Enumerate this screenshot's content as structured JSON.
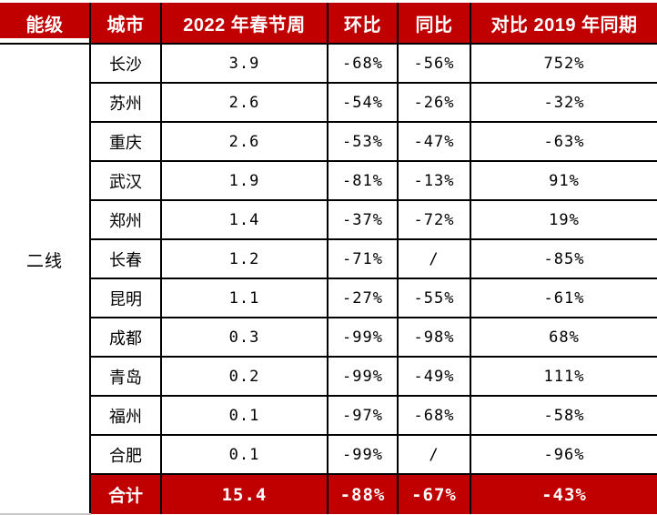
{
  "colors": {
    "header_bg": "#C00000",
    "total_bg": "#C00000",
    "header_text": "#FFFFFF",
    "body_text": "#000000",
    "border": "#000000",
    "bottom_hairline": "#C8C8C8"
  },
  "chart_data": {
    "type": "table",
    "columns": [
      "能级",
      "城市",
      "2022 年春节周",
      "环比",
      "同比",
      "对比 2019 年同期"
    ],
    "tier_label": "二线",
    "rows": [
      {
        "city": "长沙",
        "week": "3.9",
        "mom": "-68%",
        "yoy": "-56%",
        "vs2019": "752%"
      },
      {
        "city": "苏州",
        "week": "2.6",
        "mom": "-54%",
        "yoy": "-26%",
        "vs2019": "-32%"
      },
      {
        "city": "重庆",
        "week": "2.6",
        "mom": "-53%",
        "yoy": "-47%",
        "vs2019": "-63%"
      },
      {
        "city": "武汉",
        "week": "1.9",
        "mom": "-81%",
        "yoy": "-13%",
        "vs2019": "91%"
      },
      {
        "city": "郑州",
        "week": "1.4",
        "mom": "-37%",
        "yoy": "-72%",
        "vs2019": "19%"
      },
      {
        "city": "长春",
        "week": "1.2",
        "mom": "-71%",
        "yoy": "/",
        "vs2019": "-85%"
      },
      {
        "city": "昆明",
        "week": "1.1",
        "mom": "-27%",
        "yoy": "-55%",
        "vs2019": "-61%"
      },
      {
        "city": "成都",
        "week": "0.3",
        "mom": "-99%",
        "yoy": "-98%",
        "vs2019": "68%"
      },
      {
        "city": "青岛",
        "week": "0.2",
        "mom": "-99%",
        "yoy": "-49%",
        "vs2019": "111%"
      },
      {
        "city": "福州",
        "week": "0.1",
        "mom": "-97%",
        "yoy": "-68%",
        "vs2019": "-58%"
      },
      {
        "city": "合肥",
        "week": "0.1",
        "mom": "-99%",
        "yoy": "/",
        "vs2019": "-96%"
      }
    ],
    "total": {
      "label": "合计",
      "week": "15.4",
      "mom": "-88%",
      "yoy": "-67%",
      "vs2019": "-43%"
    }
  }
}
